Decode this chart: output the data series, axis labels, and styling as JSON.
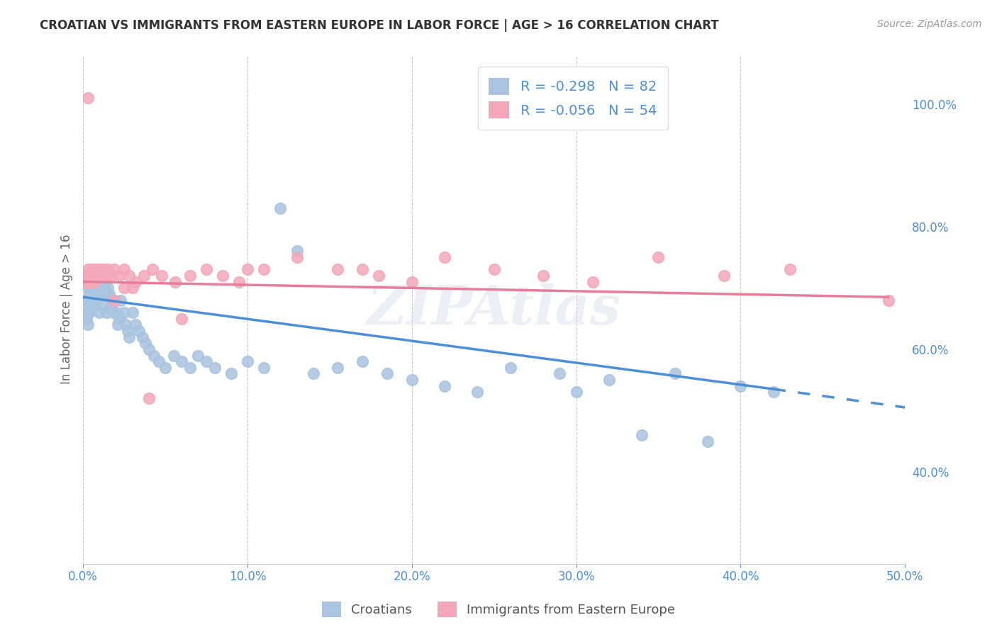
{
  "title": "CROATIAN VS IMMIGRANTS FROM EASTERN EUROPE IN LABOR FORCE | AGE > 16 CORRELATION CHART",
  "source": "Source: ZipAtlas.com",
  "ylabel": "In Labor Force | Age > 16",
  "xmin": 0.0,
  "xmax": 0.5,
  "ymin": 0.25,
  "ymax": 1.08,
  "xticks": [
    0.0,
    0.1,
    0.2,
    0.3,
    0.4,
    0.5
  ],
  "xticklabels": [
    "0.0%",
    "10.0%",
    "20.0%",
    "30.0%",
    "40.0%",
    "50.0%"
  ],
  "yticks": [
    0.4,
    0.6,
    0.8,
    1.0
  ],
  "yticklabels": [
    "40.0%",
    "60.0%",
    "80.0%",
    "100.0%"
  ],
  "blue_color": "#a8c4e0",
  "pink_color": "#f4a7b9",
  "blue_line_color": "#4a90d9",
  "pink_line_color": "#e87c9a",
  "R_blue": -0.298,
  "N_blue": 82,
  "R_pink": -0.056,
  "N_pink": 54,
  "legend_label_blue": "Croatians",
  "legend_label_pink": "Immigrants from Eastern Europe",
  "watermark": "ZIPAtlas",
  "blue_line_x0": 0.0,
  "blue_line_y0": 0.685,
  "blue_line_x1": 0.42,
  "blue_line_y1": 0.535,
  "blue_line_dash_x1": 0.5,
  "blue_line_dash_y1": 0.505,
  "pink_line_x0": 0.0,
  "pink_line_y0": 0.71,
  "pink_line_x1": 0.49,
  "pink_line_y1": 0.685,
  "blue_points_x": [
    0.001,
    0.001,
    0.002,
    0.002,
    0.002,
    0.003,
    0.003,
    0.003,
    0.003,
    0.004,
    0.004,
    0.004,
    0.005,
    0.005,
    0.005,
    0.006,
    0.006,
    0.007,
    0.007,
    0.007,
    0.008,
    0.008,
    0.009,
    0.009,
    0.01,
    0.01,
    0.011,
    0.011,
    0.012,
    0.013,
    0.013,
    0.014,
    0.014,
    0.015,
    0.016,
    0.017,
    0.018,
    0.019,
    0.02,
    0.021,
    0.022,
    0.023,
    0.025,
    0.026,
    0.027,
    0.028,
    0.03,
    0.032,
    0.034,
    0.036,
    0.038,
    0.04,
    0.043,
    0.046,
    0.05,
    0.055,
    0.06,
    0.065,
    0.07,
    0.075,
    0.08,
    0.09,
    0.1,
    0.11,
    0.12,
    0.13,
    0.14,
    0.155,
    0.17,
    0.185,
    0.2,
    0.22,
    0.24,
    0.26,
    0.29,
    0.32,
    0.36,
    0.4,
    0.42,
    0.38,
    0.34,
    0.3
  ],
  "blue_points_y": [
    0.68,
    0.66,
    0.71,
    0.68,
    0.65,
    0.7,
    0.68,
    0.66,
    0.64,
    0.71,
    0.69,
    0.66,
    0.72,
    0.7,
    0.67,
    0.71,
    0.68,
    0.72,
    0.7,
    0.67,
    0.71,
    0.68,
    0.72,
    0.7,
    0.69,
    0.66,
    0.72,
    0.7,
    0.69,
    0.7,
    0.67,
    0.69,
    0.66,
    0.7,
    0.69,
    0.67,
    0.66,
    0.68,
    0.66,
    0.64,
    0.65,
    0.68,
    0.66,
    0.64,
    0.63,
    0.62,
    0.66,
    0.64,
    0.63,
    0.62,
    0.61,
    0.6,
    0.59,
    0.58,
    0.57,
    0.59,
    0.58,
    0.57,
    0.59,
    0.58,
    0.57,
    0.56,
    0.58,
    0.57,
    0.83,
    0.76,
    0.56,
    0.57,
    0.58,
    0.56,
    0.55,
    0.54,
    0.53,
    0.57,
    0.56,
    0.55,
    0.56,
    0.54,
    0.53,
    0.45,
    0.46,
    0.53
  ],
  "pink_points_x": [
    0.001,
    0.001,
    0.002,
    0.003,
    0.003,
    0.004,
    0.005,
    0.005,
    0.006,
    0.007,
    0.007,
    0.008,
    0.009,
    0.01,
    0.011,
    0.012,
    0.013,
    0.014,
    0.015,
    0.017,
    0.019,
    0.022,
    0.025,
    0.028,
    0.032,
    0.037,
    0.042,
    0.048,
    0.056,
    0.065,
    0.075,
    0.085,
    0.095,
    0.11,
    0.13,
    0.155,
    0.18,
    0.2,
    0.22,
    0.25,
    0.28,
    0.31,
    0.35,
    0.39,
    0.43,
    0.025,
    0.019,
    0.03,
    0.04,
    0.06,
    0.1,
    0.17,
    0.49,
    0.003
  ],
  "pink_points_y": [
    0.72,
    0.71,
    0.72,
    0.73,
    0.71,
    0.72,
    0.73,
    0.71,
    0.72,
    0.73,
    0.71,
    0.72,
    0.73,
    0.72,
    0.73,
    0.72,
    0.73,
    0.72,
    0.73,
    0.72,
    0.73,
    0.72,
    0.73,
    0.72,
    0.71,
    0.72,
    0.73,
    0.72,
    0.71,
    0.72,
    0.73,
    0.72,
    0.71,
    0.73,
    0.75,
    0.73,
    0.72,
    0.71,
    0.75,
    0.73,
    0.72,
    0.71,
    0.75,
    0.72,
    0.73,
    0.7,
    0.68,
    0.7,
    0.52,
    0.65,
    0.73,
    0.73,
    0.68,
    1.01
  ]
}
